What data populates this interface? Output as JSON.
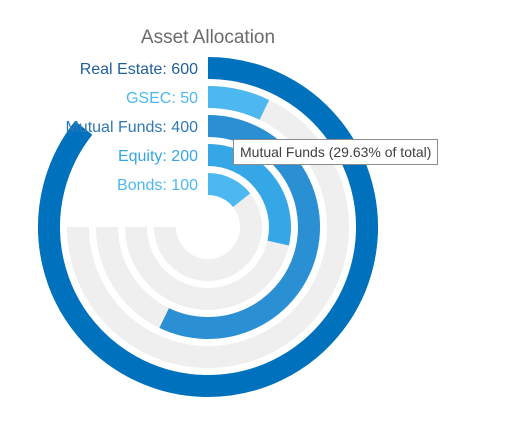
{
  "chart_data": {
    "type": "radial-bar",
    "title": "Asset Allocation",
    "categories": [
      "Real Estate",
      "GSEC",
      "Mutual Funds",
      "Equity",
      "Bonds"
    ],
    "values": [
      600,
      50,
      400,
      200,
      100
    ],
    "labels": [
      "Real Estate: 600",
      "GSEC: 50",
      "Mutual Funds: 400",
      "Equity: 200",
      "Bonds: 100"
    ],
    "colors": [
      "#0071bc",
      "#4db8f0",
      "#2b8fd3",
      "#35a6e6",
      "#4db8f0"
    ],
    "label_colors": [
      "#1f5f9a",
      "#4db8f0",
      "#2e78b5",
      "#35a6e6",
      "#4db8f0"
    ],
    "track_color": "#efefef",
    "scale_max": 700,
    "track_sweep_degrees": 270
  },
  "tooltip": {
    "text": "Mutual Funds (29.63% of total)"
  }
}
